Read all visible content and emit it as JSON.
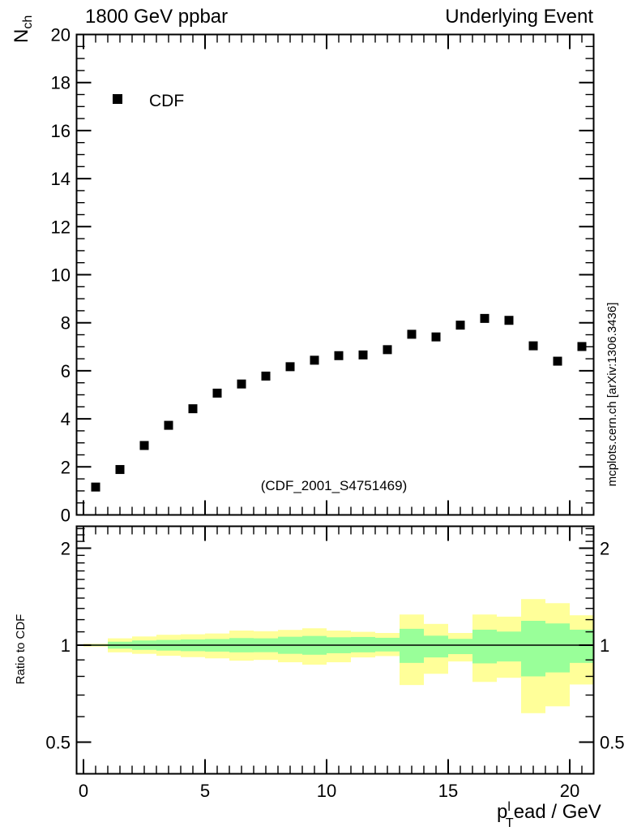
{
  "titles": {
    "left": "1800 GeV ppbar",
    "right": "Underlying Event"
  },
  "attribution": "mcplots.cern.ch [arXiv:1306.3436]",
  "watermark": "(CDF_2001_S4751469)",
  "legend": {
    "items": [
      {
        "label": "CDF",
        "marker": "filled-square",
        "color": "#000000"
      }
    ]
  },
  "main_panel": {
    "ylabel_base": "N",
    "ylabel_sub": "ch",
    "y_tick_labels": [
      0,
      2,
      4,
      6,
      8,
      10,
      12,
      14,
      16,
      18,
      20
    ],
    "y_range": [
      0,
      20
    ]
  },
  "ratio_panel": {
    "ylabel": "Ratio to CDF",
    "y_tick_labels": [
      {
        "value": 2,
        "label": "2"
      },
      {
        "value": 1,
        "label": "1"
      },
      {
        "value": 0.5,
        "label": "0.5"
      }
    ],
    "y_range": [
      0.4,
      2.35
    ],
    "yscale": "log"
  },
  "x_axis": {
    "tick_labels": [
      0,
      5,
      10,
      15,
      20
    ],
    "range": [
      0,
      21
    ],
    "label": {
      "base": "p",
      "sup": "l",
      "sub": "T",
      "rest": "ead / GeV"
    }
  },
  "colors": {
    "band_outer": "#ffff99",
    "band_inner": "#99ff99",
    "marker": "#000000",
    "watermark_gray": "#b9b9b9",
    "attribution_gray": "#8e8e8e"
  },
  "chart_data": [
    {
      "type": "scatter",
      "panel": "main",
      "title": "1800 GeV ppbar — Underlying Event",
      "xlabel": "pT^lead / GeV",
      "ylabel": "Nch",
      "xlim": [
        0,
        21
      ],
      "ylim": [
        0,
        20
      ],
      "grid": false,
      "legend_position": "top-left",
      "series": [
        {
          "name": "CDF",
          "marker": "filled-square",
          "color": "#000000",
          "x": [
            0.5,
            1.5,
            2.5,
            3.5,
            4.5,
            5.5,
            6.5,
            7.5,
            8.5,
            9.5,
            10.5,
            11.5,
            12.5,
            13.5,
            14.5,
            15.5,
            16.5,
            17.5,
            18.5,
            19.5,
            20.5
          ],
          "y": [
            1.16,
            1.89,
            2.89,
            3.73,
            4.42,
            5.07,
            5.45,
            5.78,
            6.17,
            6.44,
            6.63,
            6.66,
            6.88,
            7.52,
            7.41,
            7.9,
            8.18,
            8.1,
            7.04,
            6.4,
            7.01
          ]
        }
      ]
    },
    {
      "type": "area",
      "panel": "ratio",
      "ylabel": "Ratio to CDF",
      "yscale": "log",
      "ylim": [
        0.4,
        2.35
      ],
      "reference_line": 1.0,
      "bin_edges": [
        0,
        1,
        2,
        3,
        4,
        5,
        6,
        7,
        8,
        9,
        10,
        11,
        12,
        13,
        14,
        15,
        16,
        17,
        18,
        19,
        20,
        21
      ],
      "bands": {
        "green": [
          [
            0.995,
            1.005
          ],
          [
            0.975,
            1.025
          ],
          [
            0.967,
            1.034
          ],
          [
            0.962,
            1.038
          ],
          [
            0.958,
            1.042
          ],
          [
            0.955,
            1.045
          ],
          [
            0.95,
            1.052
          ],
          [
            0.951,
            1.05
          ],
          [
            0.94,
            1.062
          ],
          [
            0.934,
            1.068
          ],
          [
            0.944,
            1.058
          ],
          [
            0.95,
            1.06
          ],
          [
            0.956,
            1.054
          ],
          [
            0.881,
            1.124
          ],
          [
            0.916,
            1.07
          ],
          [
            0.938,
            1.046
          ],
          [
            0.878,
            1.117
          ],
          [
            0.89,
            1.102
          ],
          [
            0.8,
            1.19
          ],
          [
            0.823,
            1.168
          ],
          [
            0.881,
            1.117
          ]
        ],
        "yellow": [
          [
            0.99,
            1.01
          ],
          [
            0.95,
            1.05
          ],
          [
            0.94,
            1.064
          ],
          [
            0.927,
            1.077
          ],
          [
            0.918,
            1.081
          ],
          [
            0.91,
            1.087
          ],
          [
            0.895,
            1.11
          ],
          [
            0.9,
            1.105
          ],
          [
            0.885,
            1.115
          ],
          [
            0.87,
            1.128
          ],
          [
            0.885,
            1.11
          ],
          [
            0.916,
            1.1
          ],
          [
            0.925,
            1.091
          ],
          [
            0.752,
            1.245
          ],
          [
            0.815,
            1.164
          ],
          [
            0.89,
            1.091
          ],
          [
            0.769,
            1.245
          ],
          [
            0.792,
            1.226
          ],
          [
            0.615,
            1.39
          ],
          [
            0.646,
            1.35
          ],
          [
            0.755,
            1.238
          ]
        ]
      }
    }
  ]
}
